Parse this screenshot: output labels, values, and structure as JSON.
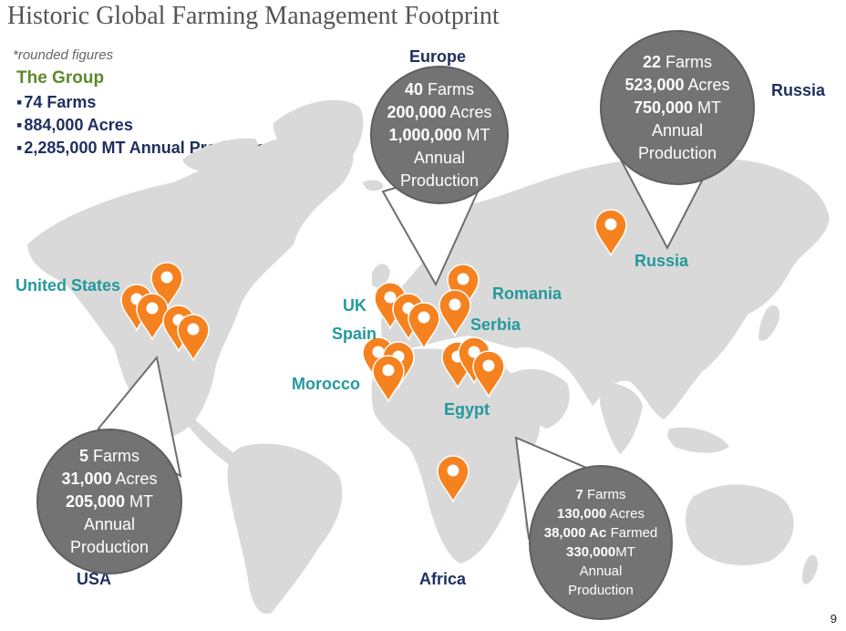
{
  "title": "Historic Global Farming Management Footprint",
  "note": "*rounded figures",
  "group": {
    "title": "The Group",
    "items": [
      "74 Farms",
      "884,000 Acres",
      "2,285,000 MT Annual Production"
    ]
  },
  "regions": {
    "europe": "Europe",
    "russia": "Russia",
    "usa": "USA",
    "africa": "Africa"
  },
  "countries": {
    "united_states": "United States",
    "uk": "UK",
    "spain": "Spain",
    "morocco": "Morocco",
    "romania": "Romania",
    "serbia": "Serbia",
    "egypt": "Egypt",
    "russia": "Russia"
  },
  "bubbles": {
    "europe": {
      "farms_num": "40",
      "farms_txt": " Farms",
      "acres_num": "200,000",
      "acres_txt": " Acres",
      "mt_num": "1,000,000",
      "mt_txt": " MT",
      "annual": "Annual",
      "production": "Production"
    },
    "russia": {
      "farms_num": "22",
      "farms_txt": " Farms",
      "acres_num": "523,000",
      "acres_txt": " Acres",
      "mt_num": "750,000",
      "mt_txt": " MT",
      "annual": "Annual",
      "production": "Production"
    },
    "usa": {
      "farms_num": "5",
      "farms_txt": " Farms",
      "acres_num": "31,000",
      "acres_txt": " Acres",
      "mt_num": "205,000",
      "mt_txt": " MT",
      "annual": "Annual",
      "production": "Production"
    },
    "africa": {
      "farms_num": "7",
      "farms_txt": " Farms",
      "acres_num": "130,000",
      "acres_txt": " Acres",
      "farmed_num": "38,000 Ac",
      "farmed_txt": " Farmed",
      "mt_num": "330,000",
      "mt_txt": "MT",
      "annual": "Annual",
      "production": "Production"
    }
  },
  "colors": {
    "land": "#d9d9d9",
    "pin": "#f5821f",
    "bubble": "#737373",
    "region_text": "#1e2f5f",
    "country_text": "#24999c",
    "group_title": "#5a8a2e"
  },
  "page_number": "9"
}
